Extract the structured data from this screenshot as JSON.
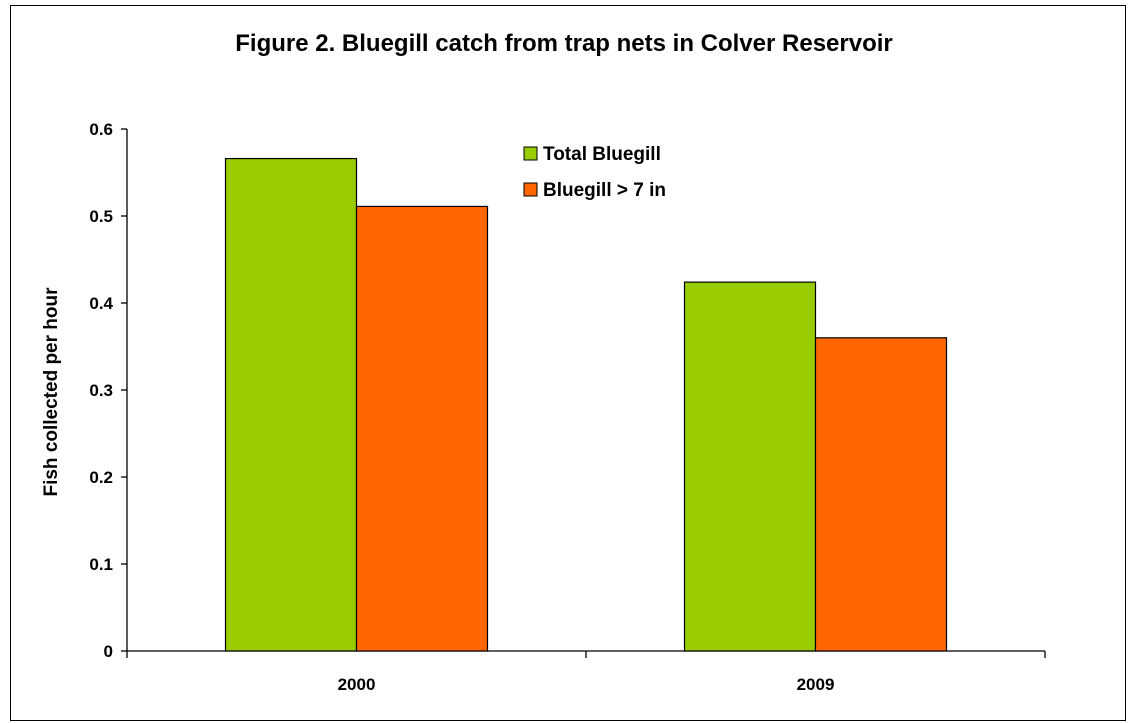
{
  "colors": {
    "total": "#99CC00",
    "large": "#FF6600",
    "border": "#000000"
  },
  "chart_data": {
    "type": "bar",
    "title": "Figure 2. Bluegill catch from trap nets in Colver Reservoir",
    "xlabel": "",
    "ylabel": "Fish collected per hour",
    "categories": [
      "2000",
      "2009"
    ],
    "series": [
      {
        "name": "Total Bluegill",
        "values": [
          0.566,
          0.424
        ]
      },
      {
        "name": "Bluegill > 7 in",
        "values": [
          0.511,
          0.36
        ]
      }
    ],
    "ylim": [
      0,
      0.6
    ],
    "yticks": [
      "0",
      "0.1",
      "0.2",
      "0.3",
      "0.4",
      "0.5",
      "0.6"
    ],
    "grid": false,
    "legend_position": "top-right"
  }
}
